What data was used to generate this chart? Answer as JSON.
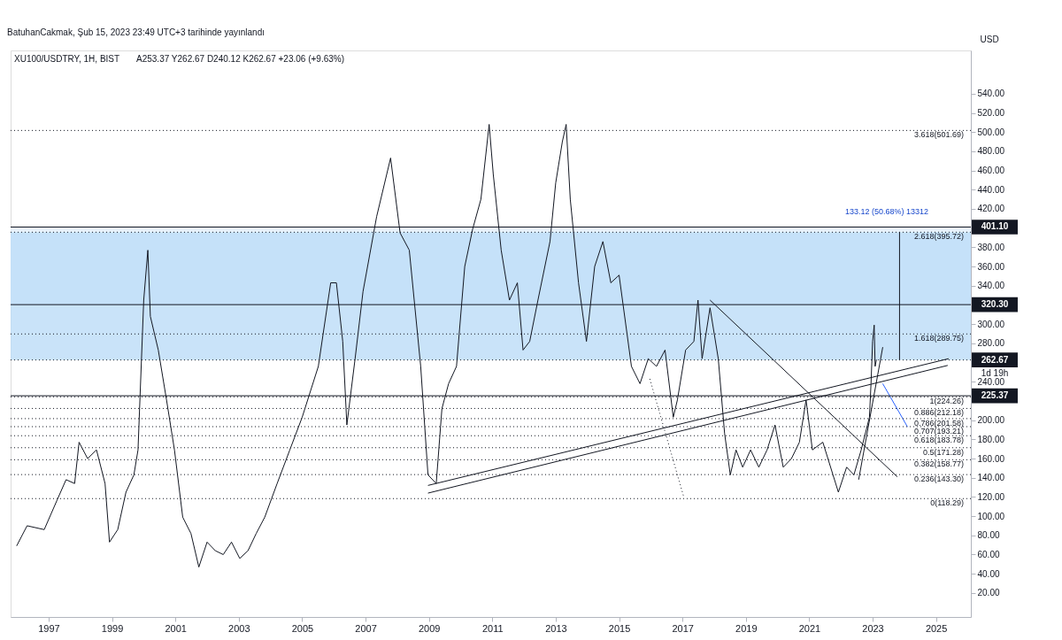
{
  "chart_data": {
    "type": "line",
    "title": "XU100/USDTRY, 1H, BIST",
    "subtitle": "A253.37 Y262.67 D240.12 K262.67 +23.06 (+9.63%)",
    "ylabel": "USD",
    "annotations": [
      "BatuhanCakmak, Şub 15, 2023 23:49 UTC+3 tarihinde yayınlandı",
      "1d 19h",
      "133.12 (50.68%) 13312"
    ],
    "xlim": [
      1995.8,
      2026.1
    ],
    "ylim": [
      -5,
      585
    ],
    "xticks": [
      1997,
      1999,
      2001,
      2003,
      2005,
      2007,
      2009,
      2011,
      2013,
      2015,
      2017,
      2019,
      2021,
      2023,
      2025
    ],
    "yticks": [
      {
        "value": 20,
        "label": "20.00"
      },
      {
        "value": 40,
        "label": "40.00"
      },
      {
        "value": 60,
        "label": "60.00"
      },
      {
        "value": 80,
        "label": "80.00"
      },
      {
        "value": 100,
        "label": "100.00"
      },
      {
        "value": 120,
        "label": "120.00"
      },
      {
        "value": 140,
        "label": "140.00"
      },
      {
        "value": 160,
        "label": "160.00"
      },
      {
        "value": 180,
        "label": "180.00"
      },
      {
        "value": 200,
        "label": "200.00"
      },
      {
        "value": 220,
        "label": null
      },
      {
        "value": 240,
        "label": "240.00"
      },
      {
        "value": 260,
        "label": null
      },
      {
        "value": 280,
        "label": "280.00"
      },
      {
        "value": 300,
        "label": "300.00"
      },
      {
        "value": 320,
        "label": null
      },
      {
        "value": 340,
        "label": "340.00"
      },
      {
        "value": 360,
        "label": "360.00"
      },
      {
        "value": 380,
        "label": "380.00"
      },
      {
        "value": 400,
        "label": null
      },
      {
        "value": 420,
        "label": "420.00"
      },
      {
        "value": 440,
        "label": "440.00"
      },
      {
        "value": 460,
        "label": "460.00"
      },
      {
        "value": 480,
        "label": "480.00"
      },
      {
        "value": 500,
        "label": "500.00"
      },
      {
        "value": 520,
        "label": "520.00"
      },
      {
        "value": 540,
        "label": "540.00"
      }
    ],
    "grid": false,
    "marker": "none",
    "line_style": "solid",
    "series": [
      {
        "color": "#131722",
        "x": [
          1995.99,
          1996.32,
          1996.86,
          1997.27,
          1997.55,
          1997.82,
          1997.96,
          1998.23,
          1998.51,
          1998.78,
          1998.92,
          1999.18,
          1999.44,
          1999.69,
          1999.82,
          2000.0,
          2000.13,
          2000.21,
          2000.46,
          2000.72,
          2000.97,
          2001.23,
          2001.49,
          2001.74,
          2002.0,
          2002.26,
          2002.51,
          2002.77,
          2003.03,
          2003.29,
          2003.55,
          2003.82,
          2004.21,
          2004.61,
          2005.0,
          2005.51,
          2005.9,
          2006.08,
          2006.28,
          2006.41,
          2006.67,
          2006.92,
          2007.35,
          2007.79,
          2008.09,
          2008.38,
          2008.74,
          2008.97,
          2009.23,
          2009.41,
          2009.62,
          2009.87,
          2010.13,
          2010.38,
          2010.64,
          2010.9,
          2011.03,
          2011.28,
          2011.54,
          2011.79,
          2011.97,
          2012.18,
          2012.44,
          2012.82,
          2013.0,
          2013.21,
          2013.33,
          2013.46,
          2013.72,
          2013.97,
          2014.23,
          2014.49,
          2014.74,
          2015.0,
          2015.39,
          2015.66,
          2015.92,
          2016.18,
          2016.45,
          2016.71,
          2016.84,
          2017.1,
          2017.36,
          2017.49,
          2017.62,
          2017.87,
          2018.13,
          2018.33,
          2018.51,
          2018.69,
          2018.9,
          2019.15,
          2019.41,
          2019.67,
          2019.92,
          2020.18,
          2020.44,
          2020.69,
          2020.9,
          2021.1,
          2021.43,
          2021.75,
          2021.92,
          2022.18,
          2022.41,
          2022.64,
          2022.9,
          2022.95,
          2023.0,
          2023.05,
          2023.08,
          2023.12
        ],
        "values": [
          69,
          90,
          86,
          117,
          138,
          134,
          177,
          160,
          169,
          134,
          73,
          86,
          125,
          143,
          169,
          325,
          377,
          308,
          273,
          221,
          169,
          99,
          82,
          47,
          73,
          64,
          60,
          73,
          56,
          64,
          82,
          99,
          134,
          169,
          203,
          256,
          343,
          343,
          282,
          195,
          264,
          334,
          412,
          473,
          395,
          377,
          256,
          143,
          134,
          212,
          238,
          256,
          360,
          399,
          430,
          508,
          456,
          377,
          325,
          343,
          273,
          282,
          325,
          386,
          447,
          490,
          508,
          430,
          343,
          282,
          360,
          386,
          343,
          351,
          256,
          238,
          264,
          256,
          273,
          203,
          221,
          273,
          282,
          325,
          264,
          317,
          264,
          186,
          143,
          169,
          151,
          169,
          151,
          169,
          195,
          151,
          160,
          177,
          221,
          169,
          177,
          143,
          125,
          151,
          143,
          169,
          203,
          238,
          282,
          299,
          256,
          263
        ]
      },
      {
        "type": "line",
        "color": "#131722",
        "x": [
          2008.97,
          2025.37
        ],
        "values": [
          124,
          257
        ]
      },
      {
        "type": "line",
        "color": "#131722",
        "x": [
          2008.97,
          2025.4
        ],
        "values": [
          132,
          264
        ]
      },
      {
        "type": "line",
        "color": "#131722",
        "x": [
          2017.87,
          2023.78
        ],
        "values": [
          325,
          141
        ]
      },
      {
        "type": "line",
        "color": "#131722",
        "line_style": "dotted",
        "x": [
          2015.97,
          2017.05
        ],
        "values": [
          243,
          119
        ]
      },
      {
        "type": "line",
        "color": "#131722",
        "x": [
          2022.56,
          2023.32
        ],
        "values": [
          138,
          276
        ]
      },
      {
        "type": "line",
        "color": "#131722",
        "x": [
          2023.85,
          2023.85
        ],
        "values": [
          263,
          396
        ]
      },
      {
        "type": "line",
        "color": "#2962ff",
        "x": [
          2024.1,
          2023.32
        ],
        "values": [
          193,
          238
        ]
      }
    ],
    "bands": [
      {
        "axis": "y",
        "from": 320.3,
        "to": 401.1,
        "color": "#e3f0fb"
      },
      {
        "axis": "y",
        "from": 262.67,
        "to": 395.72,
        "color": "#bbdcf7"
      }
    ],
    "ref_lines": [
      {
        "axis": "y",
        "value": 401.1,
        "label": "401.10",
        "line_style": "solid"
      },
      {
        "axis": "y",
        "value": 320.3,
        "label": "320.30",
        "line_style": "solid"
      },
      {
        "axis": "y",
        "value": 262.67,
        "label": "262.67",
        "line_style": "dotted"
      },
      {
        "axis": "y",
        "value": 225.37,
        "label": "225.37",
        "line_style": "solid"
      },
      {
        "axis": "y",
        "value": 501.69,
        "label": "3.618(501.69)",
        "line_style": "dotted"
      },
      {
        "axis": "y",
        "value": 395.72,
        "label": "2.618(395.72)",
        "line_style": "dotted"
      },
      {
        "axis": "y",
        "value": 289.75,
        "label": "1.618(289.75)",
        "line_style": "dotted"
      },
      {
        "axis": "y",
        "value": 224.26,
        "label": "1(224.26)",
        "line_style": "dotted"
      },
      {
        "axis": "y",
        "value": 212.18,
        "label": "0.886(212.18)",
        "line_style": "dotted"
      },
      {
        "axis": "y",
        "value": 201.58,
        "label": "0.786(201.58)",
        "line_style": "dotted"
      },
      {
        "axis": "y",
        "value": 193.21,
        "label": "0.707(193.21)",
        "line_style": "dotted"
      },
      {
        "axis": "y",
        "value": 183.78,
        "label": "0.618(183.78)",
        "line_style": "dotted"
      },
      {
        "axis": "y",
        "value": 171.28,
        "label": "0.5(171.28)",
        "line_style": "dotted"
      },
      {
        "axis": "y",
        "value": 158.77,
        "label": "0.382(158.77)",
        "line_style": "dotted"
      },
      {
        "axis": "y",
        "value": 143.3,
        "label": "0.236(143.30)",
        "line_style": "dotted"
      },
      {
        "axis": "y",
        "value": 118.29,
        "label": "0(118.29)",
        "line_style": "dotted"
      }
    ]
  }
}
